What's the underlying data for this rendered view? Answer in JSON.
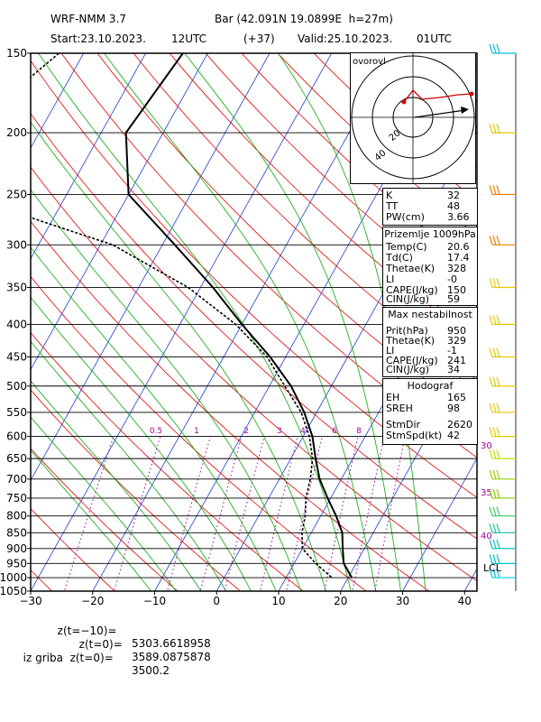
{
  "header": {
    "model": "WRF-NMM 3.7",
    "location": "Bar (42.091N 19.0899E  h=27m)",
    "start": "Start:23.10.2023.",
    "start_hour": "12UTC",
    "lead": "(+37)",
    "valid": "Valid:25.10.2023.",
    "valid_hour": "01UTC"
  },
  "chart_data": {
    "type": "skew-t",
    "y_axis": {
      "scale": "log",
      "unit": "hPa",
      "ticks": [
        150,
        200,
        250,
        300,
        350,
        400,
        450,
        500,
        550,
        600,
        650,
        700,
        750,
        800,
        850,
        900,
        950,
        1000,
        1050
      ]
    },
    "x_axis": {
      "unit": "C",
      "range": [
        -30,
        42
      ],
      "ticks": [
        -30,
        -20,
        -10,
        0,
        10,
        20,
        30,
        40
      ],
      "tick_labels": [
        "−30",
        "−20",
        "−10",
        "0",
        "10",
        "20",
        "30",
        "40"
      ]
    },
    "temperature": [
      {
        "p": 150,
        "t": -54
      },
      {
        "p": 200,
        "t": -56
      },
      {
        "p": 250,
        "t": -50
      },
      {
        "p": 300,
        "t": -38
      },
      {
        "p": 350,
        "t": -28
      },
      {
        "p": 400,
        "t": -20
      },
      {
        "p": 450,
        "t": -12.5
      },
      {
        "p": 500,
        "t": -6.5
      },
      {
        "p": 550,
        "t": -2
      },
      {
        "p": 600,
        "t": 1.5
      },
      {
        "p": 650,
        "t": 4
      },
      {
        "p": 700,
        "t": 6.5
      },
      {
        "p": 750,
        "t": 9.5
      },
      {
        "p": 800,
        "t": 12.5
      },
      {
        "p": 850,
        "t": 15
      },
      {
        "p": 900,
        "t": 16.5
      },
      {
        "p": 950,
        "t": 18
      },
      {
        "p": 1000,
        "t": 20.6
      }
    ],
    "dewpoint": [
      {
        "p": 150,
        "t": -74
      },
      {
        "p": 200,
        "t": -82
      },
      {
        "p": 230,
        "t": -80
      },
      {
        "p": 250,
        "t": -77
      },
      {
        "p": 280,
        "t": -59
      },
      {
        "p": 300,
        "t": -48
      },
      {
        "p": 350,
        "t": -32
      },
      {
        "p": 400,
        "t": -21
      },
      {
        "p": 450,
        "t": -13
      },
      {
        "p": 500,
        "t": -7.5
      },
      {
        "p": 550,
        "t": -2.5
      },
      {
        "p": 600,
        "t": 1
      },
      {
        "p": 650,
        "t": 3.5
      },
      {
        "p": 700,
        "t": 5
      },
      {
        "p": 750,
        "t": 6
      },
      {
        "p": 800,
        "t": 7.5
      },
      {
        "p": 850,
        "t": 8.5
      },
      {
        "p": 900,
        "t": 10
      },
      {
        "p": 950,
        "t": 13.5
      },
      {
        "p": 1000,
        "t": 17.4
      }
    ],
    "mixing_ratio_labels": [
      "0.5",
      "1",
      "2",
      "3",
      "4",
      "6",
      "8"
    ],
    "theta_e_labels": [
      "30",
      "35",
      "40"
    ],
    "lcl_label": "LCL",
    "hodograph_title": "ovorovl",
    "hodograph_ring_labels": [
      "20",
      "40"
    ]
  },
  "indices": {
    "rows": [
      {
        "k": "K",
        "v": "32"
      },
      {
        "k": "TT",
        "v": "48"
      },
      {
        "k": "PW(cm)",
        "v": "3.66"
      }
    ]
  },
  "surface": {
    "title": "Prizemlje 1009hPa",
    "rows": [
      {
        "k": "Temp(C)",
        "v": "20.6"
      },
      {
        "k": "Td(C)",
        "v": "17.4"
      },
      {
        "k": "Thetae(K)",
        "v": "328"
      },
      {
        "k": "LI",
        "v": "-0"
      },
      {
        "k": "CAPE(J/kg)",
        "v": "150"
      },
      {
        "k": "CIN(J/kg)",
        "v": "59"
      }
    ]
  },
  "max_instab": {
    "title": "Max nestabilnost",
    "rows": [
      {
        "k": "Prit(hPa)",
        "v": "950"
      },
      {
        "k": "Thetae(K)",
        "v": "329"
      },
      {
        "k": "LI",
        "v": "-1"
      },
      {
        "k": "CAPE(J/kg)",
        "v": "241"
      },
      {
        "k": "CIN(J/kg)",
        "v": "34"
      }
    ]
  },
  "hodograf": {
    "title": "Hodograf",
    "rows": [
      {
        "k": "EH",
        "v": "165"
      },
      {
        "k": "SREH",
        "v": "98"
      },
      {
        "k": "StmDir",
        "v": "2620"
      },
      {
        "k": "StmSpd(kt)",
        "v": "42"
      }
    ]
  },
  "footer": {
    "line1_label": "z(t=−10)=",
    "line1_value": "5303.6618958",
    "line2_label": "z(t=0)=",
    "line2_value": "3589.0875878",
    "line3_label": "iz griba  z(t=0)=",
    "line3_value": "3500.2"
  }
}
